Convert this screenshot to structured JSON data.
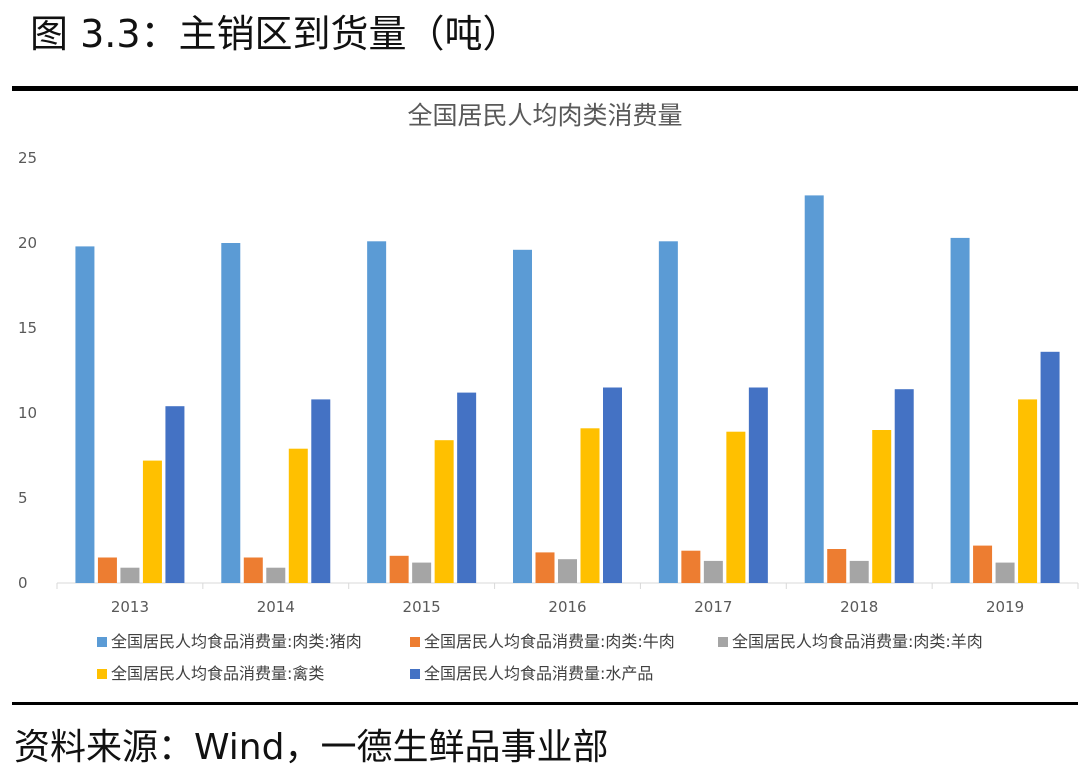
{
  "figure": {
    "title": "图 3.3：主销区到货量（吨）",
    "source": "资料来源：Wind，一德生鲜品事业部"
  },
  "chart_data": {
    "type": "bar",
    "title": "全国居民人均肉类消费量",
    "categories": [
      "2013",
      "2014",
      "2015",
      "2016",
      "2017",
      "2018",
      "2019"
    ],
    "ylim": [
      0,
      25
    ],
    "yticks": [
      0,
      5,
      10,
      15,
      20,
      25
    ],
    "grid": false,
    "legend_position": "bottom",
    "series": [
      {
        "name": "全国居民人均食品消费量:肉类:猪肉",
        "color": "#5B9BD5",
        "values": [
          19.8,
          20.0,
          20.1,
          19.6,
          20.1,
          22.8,
          20.3
        ]
      },
      {
        "name": "全国居民人均食品消费量:肉类:牛肉",
        "color": "#ED7D31",
        "values": [
          1.5,
          1.5,
          1.6,
          1.8,
          1.9,
          2.0,
          2.2
        ]
      },
      {
        "name": "全国居民人均食品消费量:肉类:羊肉",
        "color": "#A5A5A5",
        "values": [
          0.9,
          0.9,
          1.2,
          1.4,
          1.3,
          1.3,
          1.2
        ]
      },
      {
        "name": "全国居民人均食品消费量:禽类",
        "color": "#FFC000",
        "values": [
          7.2,
          7.9,
          8.4,
          9.1,
          8.9,
          9.0,
          10.8
        ]
      },
      {
        "name": "全国居民人均食品消费量:水产品",
        "color": "#4472C4",
        "values": [
          10.4,
          10.8,
          11.2,
          11.5,
          11.5,
          11.4,
          13.6
        ]
      }
    ]
  }
}
